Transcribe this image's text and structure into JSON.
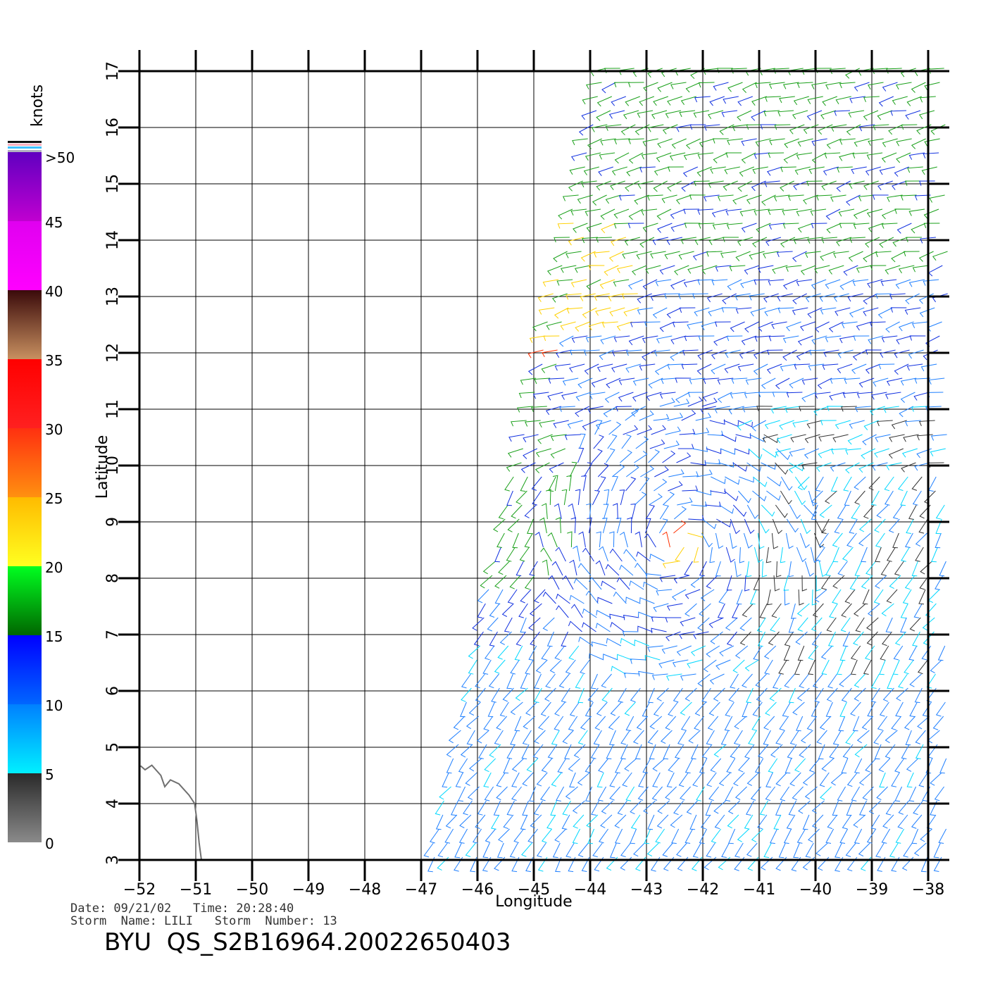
{
  "map": {
    "x_label": "Longitude",
    "y_label": "Latitude",
    "lon_ticks": [
      "-52",
      "-51",
      "-50",
      "-49",
      "-48",
      "-47",
      "-46",
      "-45",
      "-44",
      "-43",
      "-42",
      "-41",
      "-40",
      "-39",
      "-38"
    ],
    "lat_ticks": [
      "3",
      "4",
      "5",
      "6",
      "7",
      "8",
      "9",
      "10",
      "11",
      "12",
      "13",
      "14",
      "15",
      "16",
      "17"
    ],
    "lon_range": [
      -52,
      -38
    ],
    "lat_range": [
      3,
      17
    ],
    "grid": true,
    "coastline_color": "#707070"
  },
  "colorbar": {
    "unit_label": "knots",
    "bands": [
      {
        "label": "0",
        "from": "#8a8a8a",
        "to": "#2a2a2a"
      },
      {
        "label": "5",
        "from": "#00f0ff",
        "to": "#0080ff"
      },
      {
        "label": "10",
        "from": "#0066ff",
        "to": "#0000ff"
      },
      {
        "label": "15",
        "from": "#006600",
        "to": "#00ff20"
      },
      {
        "label": "20",
        "from": "#ffff20",
        "to": "#ffbb00"
      },
      {
        "label": "25",
        "from": "#ff9010",
        "to": "#ff3010"
      },
      {
        "label": "30",
        "from": "#ff2020",
        "to": "#ff0000"
      },
      {
        "label": "35",
        "from": "#c89060",
        "to": "#3a0a0a"
      },
      {
        "label": "40",
        "from": "#ff00ff",
        "to": "#e000f0"
      },
      {
        "label": "45",
        "from": "#c000d0",
        "to": "#6000c0"
      }
    ],
    "top_label": ">50"
  },
  "wind_colors": {
    "calm": "#333333",
    "light": "#00d8ff",
    "moderate": "#2080ff",
    "fresh": "#1030e0",
    "strong": "#1aa01a",
    "gale": "#ffd000",
    "storm": "#ff3000"
  },
  "info": {
    "date_line": "Date: 09/21/02   Time: 20:28:40",
    "storm_line": "Storm  Name: LILI   Storm  Number: 13",
    "title": "BYU  QS_S2B16964.20022650403"
  }
}
